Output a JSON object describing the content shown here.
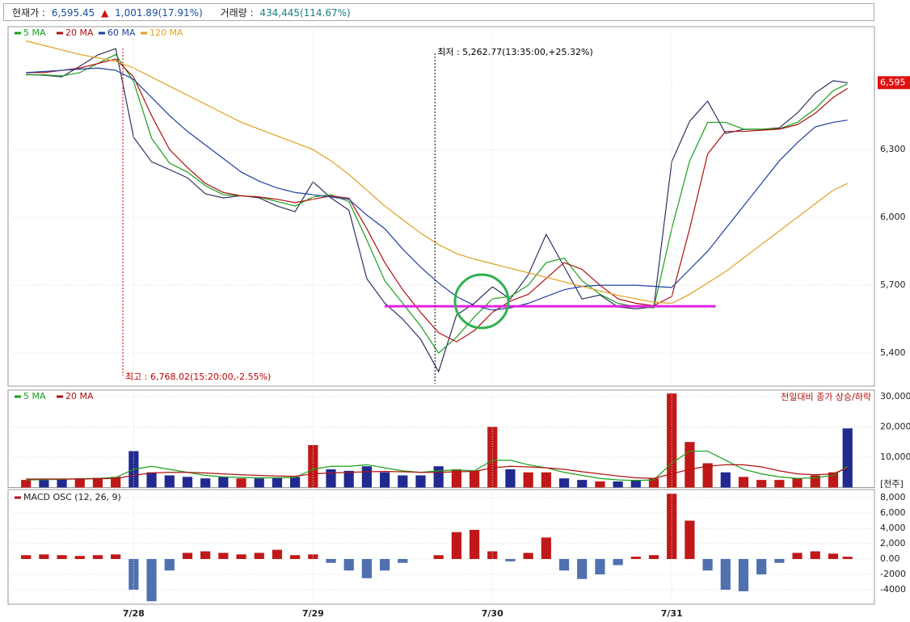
{
  "header": {
    "price_label": "현재가 :",
    "price": "6,595.45",
    "change_arrow": "▲",
    "change": "1,001.89(17.91%)",
    "volume_label": "거래량 :",
    "volume": "434,445(114.67%)"
  },
  "chart_data": [
    {
      "type": "line",
      "close_color": "#303060",
      "x": [
        0.4,
        0.5,
        0.6,
        0.7,
        0.8,
        0.9,
        1.0,
        1.1,
        1.2,
        1.3,
        1.4,
        1.5,
        1.6,
        1.7,
        1.8,
        1.9,
        2.0,
        2.1,
        2.2,
        2.3,
        2.4,
        2.5,
        2.6,
        2.7,
        2.8,
        2.9,
        3.0,
        3.1,
        3.2,
        3.3,
        3.4,
        3.5,
        3.6,
        3.7,
        3.8,
        3.9,
        4.0,
        4.1,
        4.2,
        4.3,
        4.4,
        4.5,
        4.6,
        4.7,
        4.8,
        4.9,
        4.98
      ],
      "values": [
        6632,
        6628,
        6621,
        6668,
        6718,
        6746,
        6354,
        6246,
        6211,
        6175,
        6104,
        6086,
        6096,
        6086,
        6050,
        6025,
        6157,
        6086,
        6032,
        5729,
        5621,
        5550,
        5461,
        5318,
        5568,
        5621,
        5693,
        5639,
        5746,
        5925,
        5782,
        5639,
        5657,
        5604,
        5596,
        5604,
        6246,
        6425,
        6514,
        6371,
        6389,
        6389,
        6396,
        6461,
        6550,
        6604,
        6595
      ],
      "series": [
        {
          "name": "5 MA",
          "color": "#1aa01a",
          "values": [
            6630,
            6630,
            6625,
            6640,
            6680,
            6720,
            6600,
            6350,
            6240,
            6200,
            6140,
            6100,
            6095,
            6090,
            6070,
            6050,
            6090,
            6100,
            6070,
            5900,
            5720,
            5620,
            5520,
            5400,
            5470,
            5560,
            5640,
            5650,
            5700,
            5800,
            5820,
            5720,
            5660,
            5620,
            5605,
            5600,
            5950,
            6250,
            6420,
            6420,
            6390,
            6390,
            6392,
            6420,
            6480,
            6560,
            6590
          ]
        },
        {
          "name": "20 MA",
          "color": "#b01010",
          "values": [
            6640,
            6640,
            6650,
            6660,
            6680,
            6700,
            6620,
            6450,
            6300,
            6220,
            6150,
            6110,
            6095,
            6090,
            6080,
            6065,
            6080,
            6095,
            6085,
            5950,
            5800,
            5680,
            5580,
            5490,
            5450,
            5500,
            5580,
            5630,
            5660,
            5730,
            5800,
            5770,
            5700,
            5640,
            5620,
            5610,
            5650,
            5950,
            6280,
            6380,
            6380,
            6385,
            6390,
            6410,
            6460,
            6530,
            6570
          ]
        },
        {
          "name": "60 MA",
          "color": "#1f3f9f",
          "values": [
            6640,
            6645,
            6650,
            6655,
            6660,
            6650,
            6610,
            6530,
            6450,
            6380,
            6320,
            6260,
            6200,
            6160,
            6130,
            6110,
            6100,
            6090,
            6080,
            6010,
            5950,
            5860,
            5780,
            5710,
            5650,
            5610,
            5590,
            5600,
            5620,
            5650,
            5680,
            5695,
            5700,
            5700,
            5700,
            5695,
            5690,
            5770,
            5850,
            5950,
            6050,
            6150,
            6250,
            6330,
            6400,
            6420,
            6430
          ]
        },
        {
          "name": "120 MA",
          "color": "#e0a020",
          "values": [
            6780,
            6760,
            6740,
            6720,
            6705,
            6690,
            6660,
            6620,
            6580,
            6540,
            6500,
            6460,
            6420,
            6390,
            6360,
            6330,
            6300,
            6250,
            6190,
            6120,
            6050,
            5990,
            5930,
            5880,
            5840,
            5815,
            5795,
            5775,
            5755,
            5735,
            5715,
            5695,
            5675,
            5655,
            5640,
            5625,
            5620,
            5660,
            5710,
            5760,
            5820,
            5880,
            5940,
            6000,
            6060,
            6120,
            6150
          ]
        }
      ],
      "xlim": [
        0.3,
        5.13
      ],
      "ylim": [
        5254,
        6843
      ],
      "yticks": [
        {
          "value": 5400,
          "label": "5,400"
        },
        {
          "value": 5700,
          "label": "5,700"
        },
        {
          "value": 6000,
          "label": "6,000"
        },
        {
          "value": 6300,
          "label": "6,300"
        }
      ],
      "hline": {
        "value": 5607,
        "color": "#e020e0"
      },
      "current": {
        "value": 6595.45,
        "label": "6,595"
      },
      "annotations": [
        {
          "text": "최고 : 6,768.02(15:20:00,-2.55%)",
          "x": 0.94,
          "color": "#c00000",
          "anchor": "bottom"
        },
        {
          "text": "최저 : 5,262.77(13:35:00,+25.32%)",
          "x": 2.68,
          "color": "#000000",
          "anchor": "top"
        }
      ]
    },
    {
      "type": "bar",
      "up_color": "#c01818",
      "down_color": "#202a90",
      "note": "전일대비 종가 상승/하락",
      "unit": "[천주]",
      "x": [
        0.4,
        0.5,
        0.6,
        0.7,
        0.8,
        0.9,
        1.0,
        1.1,
        1.2,
        1.3,
        1.4,
        1.5,
        1.6,
        1.7,
        1.8,
        1.9,
        2.0,
        2.1,
        2.2,
        2.3,
        2.4,
        2.5,
        2.6,
        2.7,
        2.8,
        2.9,
        3.0,
        3.1,
        3.2,
        3.3,
        3.4,
        3.5,
        3.6,
        3.7,
        3.8,
        3.9,
        4.0,
        4.1,
        4.2,
        4.3,
        4.4,
        4.5,
        4.6,
        4.7,
        4.8,
        4.9,
        4.98
      ],
      "values": [
        2500,
        2500,
        2800,
        3000,
        3200,
        3500,
        12000,
        5000,
        4000,
        3500,
        3000,
        3500,
        3000,
        3000,
        3200,
        3500,
        14000,
        6000,
        5500,
        7000,
        5000,
        4000,
        4000,
        7000,
        6000,
        5500,
        20000,
        6000,
        5000,
        5000,
        3000,
        2500,
        2000,
        2000,
        2500,
        3000,
        31000,
        15000,
        8000,
        5000,
        3500,
        2500,
        2500,
        3000,
        4000,
        5000,
        19500
      ],
      "series": [
        {
          "name": "5 MA",
          "color": "#1aa01a",
          "values": [
            2500,
            2600,
            2700,
            2900,
            3000,
            3300,
            6000,
            7000,
            6000,
            5000,
            4000,
            3500,
            3300,
            3200,
            3200,
            3300,
            6000,
            7000,
            7000,
            7500,
            6500,
            5500,
            5000,
            5500,
            5800,
            5500,
            9000,
            9000,
            7500,
            6500,
            5000,
            4000,
            3000,
            2500,
            2300,
            2500,
            8000,
            12000,
            12000,
            9000,
            6000,
            4500,
            3500,
            3000,
            3200,
            4000,
            7000
          ]
        },
        {
          "name": "20 MA",
          "color": "#b01010",
          "values": [
            2800,
            2800,
            2800,
            2800,
            2900,
            3000,
            4000,
            4800,
            5000,
            5000,
            4800,
            4500,
            4200,
            4000,
            3800,
            3700,
            4500,
            4800,
            5000,
            5200,
            5300,
            5200,
            5000,
            5000,
            5200,
            5300,
            6500,
            7000,
            6800,
            6500,
            6000,
            5200,
            4500,
            3800,
            3200,
            3000,
            4500,
            6000,
            7000,
            7500,
            7500,
            6800,
            5500,
            4500,
            4200,
            4500,
            6500
          ]
        }
      ],
      "xlim": [
        0.3,
        5.13
      ],
      "ylim": [
        0,
        32100
      ],
      "yticks": [
        {
          "value": 10000,
          "label": "10,000"
        },
        {
          "value": 20000,
          "label": "20,000"
        },
        {
          "value": 30000,
          "label": "30,000"
        }
      ]
    },
    {
      "type": "bar",
      "title": "MACD OSC (12, 26, 9)",
      "title_color": "#b01010",
      "up_color": "#c01818",
      "down_color": "#5070b0",
      "x": [
        0.4,
        0.5,
        0.6,
        0.7,
        0.8,
        0.9,
        1.0,
        1.1,
        1.2,
        1.3,
        1.4,
        1.5,
        1.6,
        1.7,
        1.8,
        1.9,
        2.0,
        2.1,
        2.2,
        2.3,
        2.4,
        2.5,
        2.6,
        2.7,
        2.8,
        2.9,
        3.0,
        3.1,
        3.2,
        3.3,
        3.4,
        3.5,
        3.6,
        3.7,
        3.8,
        3.9,
        4.0,
        4.1,
        4.2,
        4.3,
        4.4,
        4.5,
        4.6,
        4.7,
        4.8,
        4.9,
        4.98
      ],
      "values": [
        500,
        600,
        500,
        400,
        500,
        600,
        -4000,
        -5500,
        -1500,
        800,
        1000,
        800,
        600,
        800,
        1200,
        500,
        600,
        -500,
        -1500,
        -2500,
        -1500,
        -500,
        0,
        500,
        3500,
        3800,
        1000,
        -300,
        800,
        2800,
        -1500,
        -2600,
        -2000,
        -800,
        300,
        500,
        8500,
        5000,
        -1500,
        -4000,
        -4200,
        -2000,
        -500,
        800,
        1000,
        700,
        300
      ],
      "xlim": [
        0.3,
        5.13
      ],
      "ylim": [
        -5890,
        9050
      ],
      "yticks": [
        {
          "value": 8000,
          "label": "8,000"
        },
        {
          "value": 6000,
          "label": "6,000"
        },
        {
          "value": 4000,
          "label": "4,000"
        },
        {
          "value": 2000,
          "label": "2,000"
        },
        {
          "value": 0,
          "label": "0.00"
        },
        -2000,
        -4000
      ],
      "xticks": [
        {
          "value": 1,
          "label": "7/28"
        },
        {
          "value": 2,
          "label": "7/29"
        },
        {
          "value": 3,
          "label": "7/30"
        },
        {
          "value": 4,
          "label": "7/31"
        }
      ]
    }
  ]
}
